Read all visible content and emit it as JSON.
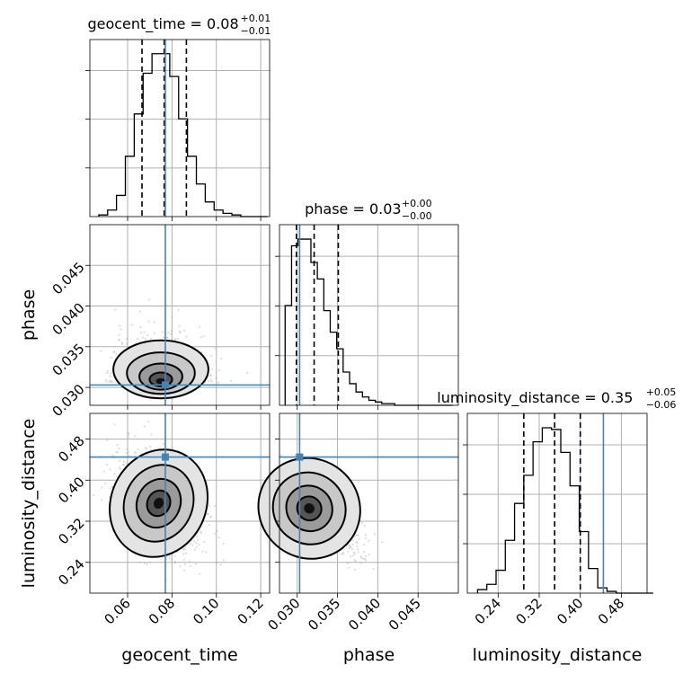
{
  "params": [
    "geocent_time",
    "phase",
    "luminosity_distance"
  ],
  "chart_data": {
    "type": "corner",
    "labels": [
      "geocent_time",
      "phase",
      "luminosity_distance"
    ],
    "truths": [
      0.077,
      0.0303,
      0.445
    ],
    "ranges": [
      [
        0.043,
        0.124
      ],
      [
        0.0278,
        0.05
      ],
      [
        0.18,
        0.53
      ]
    ],
    "xticks": [
      [
        "0.06",
        "0.08",
        "0.10",
        "0.12"
      ],
      [
        "0.030",
        "0.035",
        "0.040",
        "0.045"
      ],
      [
        "0.24",
        "0.32",
        "0.40",
        "0.48"
      ]
    ],
    "yticks": {
      "phase": [
        "0.030",
        "0.035",
        "0.040",
        "0.045"
      ],
      "luminosity_distance": [
        "0.24",
        "0.32",
        "0.40",
        "0.48"
      ]
    },
    "titles": [
      {
        "main": "geocent_time = 0.08",
        "sup": "+0.01",
        "sub": "−0.01"
      },
      {
        "main": "phase = 0.03",
        "sup": "+0.00",
        "sub": "−0.00"
      },
      {
        "main": "luminosity_distance = 0.35",
        "sup": "+0.05",
        "sub": "−0.06"
      }
    ],
    "quantiles": [
      [
        0.0665,
        0.0765,
        0.0865
      ],
      [
        0.0299,
        0.0321,
        0.0351
      ],
      [
        0.29,
        0.35,
        0.4
      ]
    ],
    "histograms": [
      {
        "edges_start": 0.047,
        "bin": 0.004,
        "counts": [
          1,
          4,
          13,
          37,
          63,
          88,
          100,
          100,
          86,
          60,
          37,
          20,
          9,
          4,
          2,
          1,
          0,
          0,
          0
        ]
      },
      {
        "edges_start": 0.0285,
        "bin": 0.0008,
        "counts": [
          60,
          96,
          100,
          100,
          86,
          76,
          57,
          44,
          34,
          20,
          13,
          8,
          5,
          3,
          2,
          1,
          1,
          0,
          0,
          0,
          0,
          0,
          0,
          0,
          0,
          0
        ]
      },
      {
        "edges_start": 0.2,
        "bin": 0.018,
        "counts": [
          2,
          5,
          13,
          30,
          51,
          67,
          86,
          94,
          93,
          80,
          61,
          35,
          14,
          3,
          1,
          0,
          0,
          0,
          0
        ]
      }
    ],
    "axis_colors": {
      "truth": "#4682b4",
      "line": "#000000",
      "grid": "#b0b0b0"
    }
  }
}
